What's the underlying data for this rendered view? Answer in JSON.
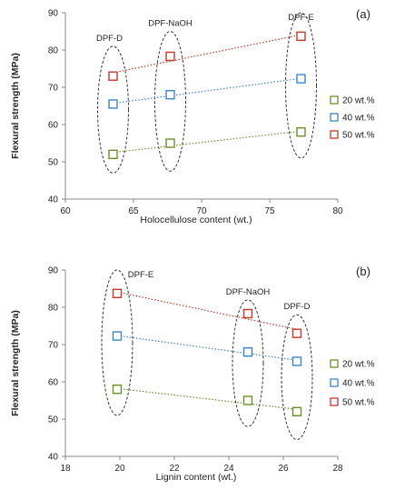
{
  "colors": {
    "20 wt.%": "#6b8e2a",
    "40 wt.%": "#3d86c6",
    "50 wt.%": "#c0392b",
    "axis": "#888888",
    "ellipse": "#333333"
  },
  "chart_data": [
    {
      "type": "scatter",
      "panel_label": "(a)",
      "xlabel": "Holocellulose content (wt.)",
      "ylabel": "Flexural strength (MPa)",
      "xlim": [
        60,
        80
      ],
      "ylim": [
        40,
        90
      ],
      "xticks": [
        "60",
        "65",
        "70",
        "75",
        "80"
      ],
      "yticks": [
        "40",
        "50",
        "60",
        "70",
        "80",
        "90"
      ],
      "trendlines": true,
      "grid": false,
      "legend_position": "right",
      "series": [
        {
          "name": "20 wt.%",
          "x": [
            63.5,
            67.7,
            77.3
          ],
          "y": [
            52,
            55,
            58
          ]
        },
        {
          "name": "40 wt.%",
          "x": [
            63.5,
            67.7,
            77.3
          ],
          "y": [
            65.5,
            68,
            72.3
          ]
        },
        {
          "name": "50 wt.%",
          "x": [
            63.5,
            67.7,
            77.3
          ],
          "y": [
            73,
            78.3,
            83.7
          ]
        }
      ],
      "groups": [
        {
          "label": "DPF-D",
          "x": 63.5,
          "y_range": [
            47,
            81
          ]
        },
        {
          "label": "DPF-NaOH",
          "x": 67.7,
          "y_range": [
            47.5,
            85
          ]
        },
        {
          "label": "DPF-E",
          "x": 77.3,
          "y_range": [
            51,
            90
          ]
        }
      ]
    },
    {
      "type": "scatter",
      "panel_label": "(b)",
      "xlabel": "Lignin content (wt.)",
      "ylabel": "Flexural strength (MPa)",
      "xlim": [
        18,
        28
      ],
      "ylim": [
        40,
        90
      ],
      "xticks": [
        "18",
        "20",
        "22",
        "24",
        "26",
        "28"
      ],
      "yticks": [
        "40",
        "50",
        "60",
        "70",
        "80",
        "90"
      ],
      "trendlines": true,
      "grid": false,
      "legend_position": "right",
      "series": [
        {
          "name": "20 wt.%",
          "x": [
            19.9,
            24.7,
            26.5
          ],
          "y": [
            58,
            55,
            52
          ]
        },
        {
          "name": "40 wt.%",
          "x": [
            19.9,
            24.7,
            26.5
          ],
          "y": [
            72.3,
            68,
            65.5
          ]
        },
        {
          "name": "50 wt.%",
          "x": [
            19.9,
            24.7,
            26.5
          ],
          "y": [
            83.7,
            78.3,
            73
          ]
        }
      ],
      "groups": [
        {
          "label": "DPF-E",
          "x": 19.9,
          "y_range": [
            51,
            90
          ]
        },
        {
          "label": "DPF-NaOH",
          "x": 24.7,
          "y_range": [
            48,
            82
          ]
        },
        {
          "label": "DPF-D",
          "x": 26.5,
          "y_range": [
            44.5,
            78
          ]
        }
      ]
    }
  ]
}
